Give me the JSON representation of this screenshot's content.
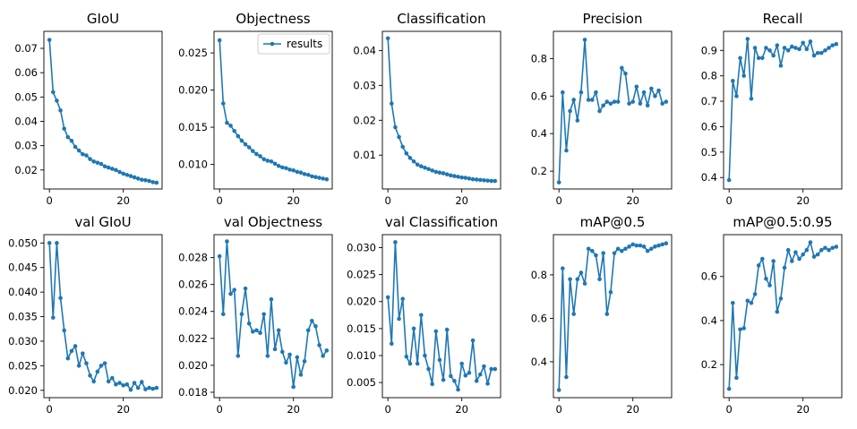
{
  "figure": {
    "line_color": "#1f77b4",
    "legend_label": "results"
  },
  "chart_data": [
    {
      "type": "line",
      "title": "GIoU",
      "xlim": [
        -1.5,
        30.5
      ],
      "ylim": [
        0.0122,
        0.077
      ],
      "xticks": [
        0,
        20
      ],
      "yticks": [
        0.02,
        0.03,
        0.04,
        0.05,
        0.06,
        0.07
      ],
      "ytick_labels": [
        "0.02",
        "0.03",
        "0.04",
        "0.05",
        "0.06",
        "0.07"
      ],
      "x": [
        0,
        1,
        2,
        3,
        4,
        5,
        6,
        7,
        8,
        9,
        10,
        11,
        12,
        13,
        14,
        15,
        16,
        17,
        18,
        19,
        20,
        21,
        22,
        23,
        24,
        25,
        26,
        27,
        28,
        29
      ],
      "series": [
        {
          "name": "results",
          "values": [
            0.0735,
            0.052,
            0.0485,
            0.0445,
            0.037,
            0.0335,
            0.032,
            0.0295,
            0.028,
            0.0265,
            0.026,
            0.0245,
            0.0235,
            0.023,
            0.0225,
            0.0215,
            0.021,
            0.0205,
            0.02,
            0.0192,
            0.0185,
            0.018,
            0.0175,
            0.017,
            0.0165,
            0.016,
            0.0158,
            0.0155,
            0.015,
            0.0148
          ]
        }
      ]
    },
    {
      "type": "line",
      "title": "Objectness",
      "xlim": [
        -1.5,
        30.5
      ],
      "ylim": [
        0.0067,
        0.0279
      ],
      "xticks": [
        0,
        20
      ],
      "yticks": [
        0.01,
        0.015,
        0.02,
        0.025
      ],
      "ytick_labels": [
        "0.010",
        "0.015",
        "0.020",
        "0.025"
      ],
      "legend": "top-right",
      "x": [
        0,
        1,
        2,
        3,
        4,
        5,
        6,
        7,
        8,
        9,
        10,
        11,
        12,
        13,
        14,
        15,
        16,
        17,
        18,
        19,
        20,
        21,
        22,
        23,
        24,
        25,
        26,
        27,
        28,
        29
      ],
      "series": [
        {
          "name": "results",
          "values": [
            0.0267,
            0.0182,
            0.0156,
            0.0152,
            0.0145,
            0.0138,
            0.0132,
            0.0127,
            0.0123,
            0.0118,
            0.0114,
            0.0111,
            0.0107,
            0.0105,
            0.0104,
            0.0101,
            0.0098,
            0.0096,
            0.0095,
            0.0093,
            0.0092,
            0.009,
            0.0089,
            0.0087,
            0.0086,
            0.0084,
            0.0083,
            0.0082,
            0.0081,
            0.008
          ]
        }
      ]
    },
    {
      "type": "line",
      "title": "Classification",
      "xlim": [
        -1.5,
        30.5
      ],
      "ylim": [
        0.0003,
        0.0455
      ],
      "xticks": [
        0,
        20
      ],
      "yticks": [
        0.01,
        0.02,
        0.03,
        0.04
      ],
      "ytick_labels": [
        "0.01",
        "0.02",
        "0.03",
        "0.04"
      ],
      "x": [
        0,
        1,
        2,
        3,
        4,
        5,
        6,
        7,
        8,
        9,
        10,
        11,
        12,
        13,
        14,
        15,
        16,
        17,
        18,
        19,
        20,
        21,
        22,
        23,
        24,
        25,
        26,
        27,
        28,
        29
      ],
      "series": [
        {
          "name": "results",
          "values": [
            0.0435,
            0.0248,
            0.018,
            0.0152,
            0.0124,
            0.0105,
            0.0092,
            0.0082,
            0.0073,
            0.0068,
            0.0064,
            0.006,
            0.0056,
            0.0052,
            0.005,
            0.0048,
            0.0045,
            0.0042,
            0.004,
            0.0038,
            0.0036,
            0.0035,
            0.0033,
            0.0031,
            0.003,
            0.0029,
            0.0028,
            0.0027,
            0.0026,
            0.0026
          ]
        }
      ]
    },
    {
      "type": "line",
      "title": "Precision",
      "xlim": [
        -1.5,
        30.5
      ],
      "ylim": [
        0.105,
        0.945
      ],
      "xticks": [
        0,
        20
      ],
      "yticks": [
        0.2,
        0.4,
        0.6,
        0.8
      ],
      "ytick_labels": [
        "0.2",
        "0.4",
        "0.6",
        "0.8"
      ],
      "x": [
        0,
        1,
        2,
        3,
        4,
        5,
        6,
        7,
        8,
        9,
        10,
        11,
        12,
        13,
        14,
        15,
        16,
        17,
        18,
        19,
        20,
        21,
        22,
        23,
        24,
        25,
        26,
        27,
        28,
        29
      ],
      "series": [
        {
          "name": "results",
          "values": [
            0.14,
            0.62,
            0.31,
            0.52,
            0.58,
            0.47,
            0.62,
            0.9,
            0.58,
            0.58,
            0.62,
            0.52,
            0.55,
            0.57,
            0.56,
            0.57,
            0.57,
            0.75,
            0.72,
            0.56,
            0.57,
            0.65,
            0.56,
            0.62,
            0.55,
            0.64,
            0.6,
            0.63,
            0.56,
            0.57
          ]
        }
      ]
    },
    {
      "type": "line",
      "title": "Recall",
      "xlim": [
        -1.5,
        30.5
      ],
      "ylim": [
        0.355,
        0.975
      ],
      "xticks": [
        0,
        20
      ],
      "yticks": [
        0.4,
        0.5,
        0.6,
        0.7,
        0.8,
        0.9
      ],
      "ytick_labels": [
        "0.4",
        "0.5",
        "0.6",
        "0.7",
        "0.8",
        "0.9"
      ],
      "x": [
        0,
        1,
        2,
        3,
        4,
        5,
        6,
        7,
        8,
        9,
        10,
        11,
        12,
        13,
        14,
        15,
        16,
        17,
        18,
        19,
        20,
        21,
        22,
        23,
        24,
        25,
        26,
        27,
        28,
        29
      ],
      "series": [
        {
          "name": "results",
          "values": [
            0.39,
            0.78,
            0.72,
            0.87,
            0.8,
            0.945,
            0.71,
            0.91,
            0.87,
            0.87,
            0.91,
            0.9,
            0.88,
            0.92,
            0.84,
            0.91,
            0.9,
            0.915,
            0.91,
            0.905,
            0.93,
            0.905,
            0.935,
            0.88,
            0.89,
            0.89,
            0.9,
            0.91,
            0.92,
            0.925
          ]
        }
      ]
    },
    {
      "type": "line",
      "title": "val GIoU",
      "xlim": [
        -1.5,
        30.5
      ],
      "ylim": [
        0.0185,
        0.0517
      ],
      "xticks": [
        0,
        20
      ],
      "yticks": [
        0.02,
        0.025,
        0.03,
        0.035,
        0.04,
        0.045,
        0.05
      ],
      "ytick_labels": [
        "0.020",
        "0.025",
        "0.030",
        "0.035",
        "0.040",
        "0.045",
        "0.050"
      ],
      "x": [
        0,
        1,
        2,
        3,
        4,
        5,
        6,
        7,
        8,
        9,
        10,
        11,
        12,
        13,
        14,
        15,
        16,
        17,
        18,
        19,
        20,
        21,
        22,
        23,
        24,
        25,
        26,
        27,
        28,
        29
      ],
      "series": [
        {
          "name": "results",
          "values": [
            0.05,
            0.0348,
            0.05,
            0.0388,
            0.0322,
            0.0265,
            0.028,
            0.029,
            0.025,
            0.0275,
            0.0255,
            0.023,
            0.0218,
            0.0238,
            0.025,
            0.0255,
            0.0218,
            0.0225,
            0.0212,
            0.0215,
            0.021,
            0.0212,
            0.0201,
            0.0215,
            0.0205,
            0.0217,
            0.0202,
            0.0205,
            0.0203,
            0.0205
          ]
        }
      ]
    },
    {
      "type": "line",
      "title": "val Objectness",
      "xlim": [
        -1.5,
        30.5
      ],
      "ylim": [
        0.0176,
        0.0297
      ],
      "xticks": [
        0,
        20
      ],
      "yticks": [
        0.018,
        0.02,
        0.022,
        0.024,
        0.026,
        0.028
      ],
      "ytick_labels": [
        "0.018",
        "0.020",
        "0.022",
        "0.024",
        "0.026",
        "0.028"
      ],
      "x": [
        0,
        1,
        2,
        3,
        4,
        5,
        6,
        7,
        8,
        9,
        10,
        11,
        12,
        13,
        14,
        15,
        16,
        17,
        18,
        19,
        20,
        21,
        22,
        23,
        24,
        25,
        26,
        27,
        28,
        29
      ],
      "series": [
        {
          "name": "results",
          "values": [
            0.0281,
            0.0238,
            0.0292,
            0.0253,
            0.0256,
            0.0207,
            0.0238,
            0.0257,
            0.0231,
            0.0225,
            0.0226,
            0.0224,
            0.0238,
            0.0207,
            0.0249,
            0.0212,
            0.0226,
            0.021,
            0.0202,
            0.0208,
            0.0184,
            0.0206,
            0.0193,
            0.0203,
            0.0226,
            0.0233,
            0.0229,
            0.0215,
            0.0207,
            0.0211
          ]
        }
      ]
    },
    {
      "type": "line",
      "title": "val Classification",
      "xlim": [
        -1.5,
        30.5
      ],
      "ylim": [
        0.0022,
        0.0324
      ],
      "xticks": [
        0,
        20
      ],
      "yticks": [
        0.005,
        0.01,
        0.015,
        0.02,
        0.025,
        0.03
      ],
      "ytick_labels": [
        "0.005",
        "0.010",
        "0.015",
        "0.020",
        "0.025",
        "0.030"
      ],
      "x": [
        0,
        1,
        2,
        3,
        4,
        5,
        6,
        7,
        8,
        9,
        10,
        11,
        12,
        13,
        14,
        15,
        16,
        17,
        18,
        19,
        20,
        21,
        22,
        23,
        24,
        25,
        26,
        27,
        28,
        29
      ],
      "series": [
        {
          "name": "results",
          "values": [
            0.0208,
            0.0122,
            0.031,
            0.0168,
            0.0205,
            0.0098,
            0.0085,
            0.015,
            0.0085,
            0.0175,
            0.01,
            0.0075,
            0.0047,
            0.0145,
            0.0092,
            0.0055,
            0.0148,
            0.0062,
            0.0053,
            0.0037,
            0.0085,
            0.0063,
            0.0068,
            0.0128,
            0.0053,
            0.0065,
            0.008,
            0.0048,
            0.0075,
            0.0075
          ]
        }
      ]
    },
    {
      "type": "line",
      "title": "mAP@0.5",
      "xlim": [
        -1.5,
        30.5
      ],
      "ylim": [
        0.235,
        0.985
      ],
      "xticks": [
        0,
        20
      ],
      "yticks": [
        0.4,
        0.6,
        0.8
      ],
      "ytick_labels": [
        "0.4",
        "0.6",
        "0.8"
      ],
      "x": [
        0,
        1,
        2,
        3,
        4,
        5,
        6,
        7,
        8,
        9,
        10,
        11,
        12,
        13,
        14,
        15,
        16,
        17,
        18,
        19,
        20,
        21,
        22,
        23,
        24,
        25,
        26,
        27,
        28,
        29
      ],
      "series": [
        {
          "name": "results",
          "values": [
            0.27,
            0.83,
            0.33,
            0.78,
            0.62,
            0.78,
            0.81,
            0.76,
            0.92,
            0.91,
            0.89,
            0.78,
            0.9,
            0.62,
            0.72,
            0.9,
            0.92,
            0.91,
            0.92,
            0.93,
            0.94,
            0.935,
            0.935,
            0.93,
            0.91,
            0.92,
            0.93,
            0.935,
            0.94,
            0.945
          ]
        }
      ]
    },
    {
      "type": "line",
      "title": "mAP@0.5:0.95",
      "xlim": [
        -1.5,
        30.5
      ],
      "ylim": [
        0.05,
        0.79
      ],
      "xticks": [
        0,
        20
      ],
      "yticks": [
        0.2,
        0.4,
        0.6
      ],
      "ytick_labels": [
        "0.2",
        "0.4",
        "0.6"
      ],
      "x": [
        0,
        1,
        2,
        3,
        4,
        5,
        6,
        7,
        8,
        9,
        10,
        11,
        12,
        13,
        14,
        15,
        16,
        17,
        18,
        19,
        20,
        21,
        22,
        23,
        24,
        25,
        26,
        27,
        28,
        29
      ],
      "series": [
        {
          "name": "results",
          "values": [
            0.09,
            0.48,
            0.14,
            0.36,
            0.365,
            0.49,
            0.48,
            0.52,
            0.65,
            0.68,
            0.59,
            0.56,
            0.67,
            0.44,
            0.5,
            0.64,
            0.72,
            0.67,
            0.71,
            0.68,
            0.7,
            0.72,
            0.755,
            0.69,
            0.7,
            0.72,
            0.73,
            0.72,
            0.73,
            0.735
          ]
        }
      ]
    }
  ]
}
